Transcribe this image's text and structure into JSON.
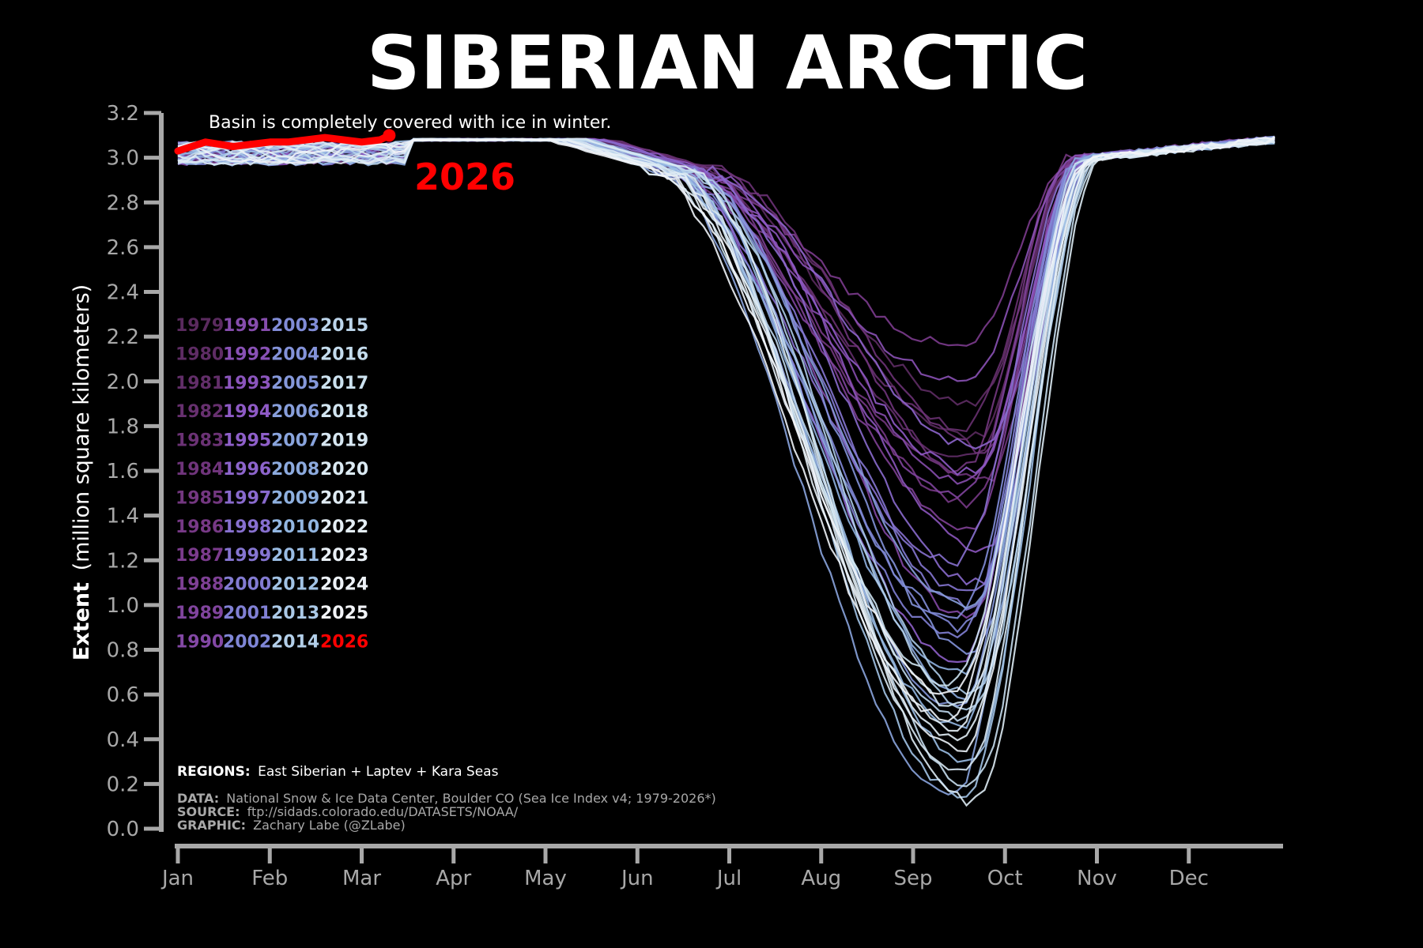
{
  "title": "SIBERIAN ARCTIC",
  "annotation": "Basin is completely covered with ice in winter.",
  "highlight_label": "2026",
  "ylabel_bold": "Extent",
  "ylabel_rest": "(million square kilometers)",
  "regions": {
    "label": "REGIONS:",
    "text": "East Siberian + Laptev + Kara Seas"
  },
  "footer": {
    "data_label": "DATA:",
    "data_text": "National Snow & Ice Data Center, Boulder CO (Sea Ice Index v4; 1979-2026*)",
    "source_label": "SOURCE:",
    "source_text": "ftp://sidads.colorado.edu/DATASETS/NOAA/",
    "graphic_label": "GRAPHIC:",
    "graphic_text": "Zachary Labe (@ZLabe)"
  },
  "colors": {
    "background": "#000000",
    "axis": "#a8a8a8",
    "highlight": "#ff0000",
    "year_gradient": [
      "#5a2a5e",
      "#7a3a8a",
      "#8f5bc8",
      "#7f86d6",
      "#8fb4e0",
      "#cfe4f0",
      "#f2f4f8"
    ]
  },
  "chart_data": {
    "type": "line",
    "title": "SIBERIAN ARCTIC",
    "xlabel": "",
    "ylabel": "Extent (million square kilometers)",
    "ylim": [
      0,
      3.2
    ],
    "yticks": [
      "0.0",
      "0.2",
      "0.4",
      "0.6",
      "0.8",
      "1.0",
      "1.2",
      "1.4",
      "1.6",
      "1.8",
      "2.0",
      "2.2",
      "2.4",
      "2.6",
      "2.8",
      "3.0",
      "3.2"
    ],
    "xticks": [
      "Jan",
      "Feb",
      "Mar",
      "Apr",
      "May",
      "Jun",
      "Jul",
      "Aug",
      "Sep",
      "Oct",
      "Nov",
      "Dec"
    ],
    "grid": false,
    "legend": [
      "1979",
      "1980",
      "1981",
      "1982",
      "1983",
      "1984",
      "1985",
      "1986",
      "1987",
      "1988",
      "1989",
      "1990",
      "1991",
      "1992",
      "1993",
      "1994",
      "1995",
      "1996",
      "1997",
      "1998",
      "1999",
      "2000",
      "2001",
      "2002",
      "2003",
      "2004",
      "2005",
      "2006",
      "2007",
      "2008",
      "2009",
      "2010",
      "2011",
      "2012",
      "2013",
      "2014",
      "2015",
      "2016",
      "2017",
      "2018",
      "2019",
      "2020",
      "2021",
      "2022",
      "2023",
      "2024",
      "2025",
      "2026"
    ],
    "legend_placement": "left",
    "series_shape": {
      "description_points": "approximate mean annual cycle in month units (0=Jan 1) and extent",
      "x": [
        0,
        1,
        2,
        3,
        4,
        5,
        5.5,
        6,
        6.5,
        7,
        7.5,
        8,
        8.5,
        9,
        9.5,
        10,
        10.5,
        11,
        11.9
      ],
      "y": [
        3.05,
        3.07,
        3.09,
        3.09,
        3.09,
        3.05,
        2.85,
        2.4,
        1.8,
        1.25,
        0.85,
        0.7,
        0.75,
        1.1,
        2.0,
        2.7,
        2.9,
        3.0,
        3.05
      ],
      "min_range_by_year": {
        "1979": 1.75,
        "1980": 1.9,
        "1981": 1.65,
        "1982": 1.8,
        "1983": 1.7,
        "1984": 1.55,
        "1985": 1.6,
        "1986": 1.45,
        "1987": 2.15,
        "1988": 1.35,
        "1989": 1.5,
        "1990": 0.95,
        "1991": 1.55,
        "1992": 2.0,
        "1993": 1.25,
        "1994": 1.6,
        "1995": 0.75,
        "1996": 1.7,
        "1997": 1.1,
        "1998": 1.2,
        "1999": 1.05,
        "2000": 1.0,
        "2001": 0.85,
        "2002": 0.9,
        "2003": 0.95,
        "2004": 0.8,
        "2005": 0.55,
        "2006": 1.0,
        "2007": 0.15,
        "2008": 0.6,
        "2009": 0.7,
        "2010": 0.45,
        "2011": 0.3,
        "2012": 0.15,
        "2013": 0.6,
        "2014": 0.55,
        "2015": 0.5,
        "2016": 0.2,
        "2017": 0.65,
        "2018": 0.55,
        "2019": 0.25,
        "2020": 0.12,
        "2021": 0.4,
        "2022": 0.45,
        "2023": 0.35,
        "2024": 0.5,
        "2025": 0.6
      }
    },
    "highlight_series": {
      "name": "2026",
      "x": [
        0,
        0.15,
        0.3,
        0.45,
        0.6,
        0.8,
        1.0,
        1.2,
        1.4,
        1.6,
        1.8,
        2.0,
        2.2,
        2.3
      ],
      "y": [
        3.03,
        3.05,
        3.07,
        3.06,
        3.05,
        3.06,
        3.07,
        3.07,
        3.08,
        3.09,
        3.08,
        3.07,
        3.08,
        3.1
      ]
    }
  }
}
